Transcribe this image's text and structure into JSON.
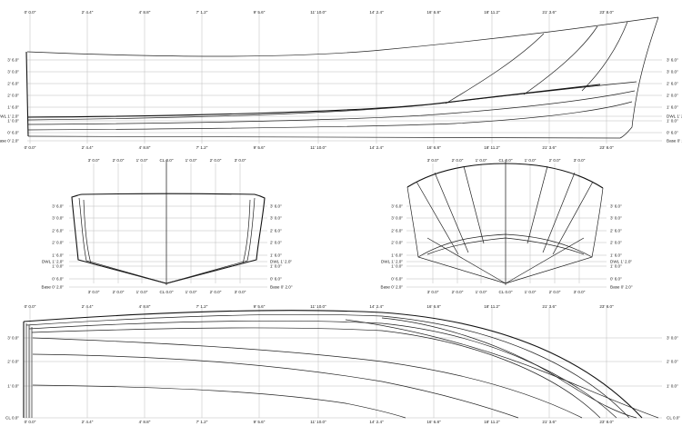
{
  "profile": {
    "stations": [
      "0' 0.0\"",
      "2' 4.4\"",
      "4' 8.8\"",
      "7' 1.2\"",
      "9' 5.6\"",
      "11' 10.0\"",
      "14' 2.4\"",
      "16' 6.8\"",
      "18' 11.2\"",
      "21' 3.6\"",
      "23' 8.0\""
    ],
    "waterlines_left": [
      "3' 6.0\"",
      "3' 0.0\"",
      "2' 6.0\"",
      "2' 0.0\"",
      "1' 6.0\"",
      "DWL 1' 2.0\"",
      "1' 0.0\"",
      "0' 6.0\"",
      "Base 0' 2.0\""
    ],
    "waterlines_right": [
      "3' 6.0\"",
      "3' 0.0\"",
      "2' 6.0\"",
      "2' 0.0\"",
      "1' 6.0\"",
      "DWL 1' 2.0\"",
      "1' 0.0\"",
      "0' 6.0\"",
      "Base 0' 2.0\""
    ]
  },
  "body_aft": {
    "buttocks_top": [
      "3' 0.0\"",
      "2' 0.0\"",
      "1' 0.0\"",
      "CL 0.0\"",
      "1' 0.0\"",
      "2' 0.0\"",
      "3' 0.0\""
    ],
    "buttocks_bottom": [
      "3' 0.0\"",
      "2' 0.0\"",
      "1' 0.0\"",
      "CL 0.0\"",
      "1' 0.0\"",
      "2' 0.0\"",
      "3' 0.0\""
    ],
    "waterlines_left": [
      "3' 6.0\"",
      "3' 0.0\"",
      "2' 6.0\"",
      "2' 0.0\"",
      "1' 6.0\"",
      "DWL 1' 2.0\"",
      "1' 0.0\"",
      "0' 6.0\"",
      "Base 0' 2.0\""
    ],
    "waterlines_right": [
      "3' 6.0\"",
      "3' 0.0\"",
      "2' 6.0\"",
      "2' 0.0\"",
      "1' 6.0\"",
      "DWL 1' 2.0\"",
      "1' 0.0\"",
      "0' 6.0\"",
      "Base 0' 2.0\""
    ]
  },
  "body_fwd": {
    "buttocks_top": [
      "3' 0.0\"",
      "2' 0.0\"",
      "1' 0.0\"",
      "CL 0.0\"",
      "1' 0.0\"",
      "2' 0.0\"",
      "3' 0.0\""
    ],
    "buttocks_bottom": [
      "3' 0.0\"",
      "2' 0.0\"",
      "1' 0.0\"",
      "CL 0.0\"",
      "1' 0.0\"",
      "2' 0.0\"",
      "3' 0.0\""
    ],
    "waterlines_left": [
      "3' 6.0\"",
      "3' 0.0\"",
      "2' 6.0\"",
      "2' 0.0\"",
      "1' 6.0\"",
      "DWL 1' 2.0\"",
      "1' 0.0\"",
      "0' 6.0\"",
      "Base 0' 2.0\""
    ],
    "waterlines_right": [
      "3' 6.0\"",
      "3' 0.0\"",
      "2' 6.0\"",
      "2' 0.0\"",
      "1' 6.0\"",
      "DWL 1' 2.0\"",
      "1' 0.0\"",
      "0' 6.0\"",
      "Base 0' 2.0\""
    ]
  },
  "plan": {
    "stations": [
      "0' 0.0\"",
      "2' 4.4\"",
      "4' 8.8\"",
      "7' 1.2\"",
      "9' 5.6\"",
      "11' 10.0\"",
      "14' 2.4\"",
      "16' 6.8\"",
      "18' 11.2\"",
      "21' 3.6\"",
      "23' 8.0\""
    ],
    "half_breadths_left": [
      "3' 0.0\"",
      "2' 0.0\"",
      "1' 0.0\"",
      "CL 0.0\""
    ],
    "half_breadths_right": [
      "3' 0.0\"",
      "2' 0.0\"",
      "1' 0.0\"",
      "CL 0.0\""
    ]
  }
}
